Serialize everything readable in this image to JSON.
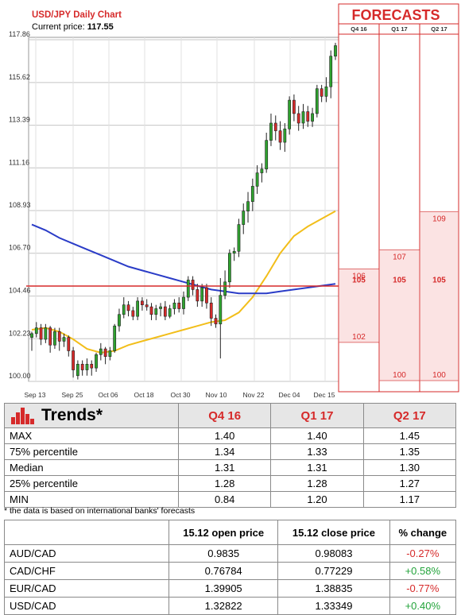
{
  "chart_data": {
    "type": "candlestick",
    "title": "USD/JPY Daily Chart",
    "current_price_label": "Current price:",
    "current_price": "117.55",
    "y_ticks": [
      117.86,
      115.62,
      113.39,
      111.16,
      108.93,
      106.7,
      104.46,
      102.23,
      100.0
    ],
    "ylim": [
      100.0,
      117.86
    ],
    "x_ticks": [
      "Sep 13",
      "Sep 25",
      "Oct 06",
      "Oct 18",
      "Oct 30",
      "Nov 10",
      "Nov 22",
      "Dec 04",
      "Dec 15"
    ],
    "candles": [
      [
        102.3,
        102.5,
        101.6,
        102.6
      ],
      [
        102.5,
        102.8,
        102.3,
        103.1
      ],
      [
        102.8,
        102.2,
        101.9,
        103.0
      ],
      [
        102.2,
        102.8,
        102.0,
        103.0
      ],
      [
        102.8,
        101.9,
        101.5,
        102.9
      ],
      [
        101.9,
        102.6,
        101.7,
        102.8
      ],
      [
        102.6,
        102.1,
        101.6,
        102.8
      ],
      [
        102.1,
        102.3,
        101.8,
        102.5
      ],
      [
        102.3,
        101.6,
        101.3,
        102.4
      ],
      [
        101.6,
        100.6,
        100.2,
        101.8
      ],
      [
        100.3,
        100.9,
        100.1,
        101.1
      ],
      [
        100.9,
        100.6,
        100.3,
        101.1
      ],
      [
        100.6,
        100.9,
        100.3,
        101.2
      ],
      [
        100.9,
        100.7,
        100.3,
        101.1
      ],
      [
        100.7,
        101.4,
        100.5,
        101.5
      ],
      [
        101.4,
        101.7,
        101.1,
        102.0
      ],
      [
        101.7,
        101.3,
        100.9,
        101.8
      ],
      [
        101.3,
        101.6,
        101.1,
        101.8
      ],
      [
        101.6,
        102.9,
        101.5,
        103.0
      ],
      [
        102.9,
        103.5,
        102.6,
        103.8
      ],
      [
        103.5,
        104.0,
        103.3,
        104.4
      ],
      [
        104.0,
        103.7,
        103.4,
        104.2
      ],
      [
        103.7,
        103.4,
        103.2,
        103.9
      ],
      [
        103.4,
        104.2,
        103.2,
        104.4
      ],
      [
        104.2,
        104.0,
        103.7,
        104.4
      ],
      [
        104.0,
        103.9,
        103.7,
        104.3
      ],
      [
        103.9,
        103.5,
        103.2,
        104.1
      ],
      [
        103.5,
        103.8,
        103.2,
        104.0
      ],
      [
        103.8,
        103.9,
        103.4,
        104.1
      ],
      [
        103.9,
        103.4,
        103.2,
        104.2
      ],
      [
        103.4,
        103.8,
        103.3,
        104.0
      ],
      [
        103.8,
        104.1,
        103.5,
        104.3
      ],
      [
        104.1,
        103.8,
        103.6,
        104.4
      ],
      [
        103.8,
        104.4,
        103.5,
        104.7
      ],
      [
        104.4,
        105.3,
        104.2,
        105.5
      ],
      [
        105.3,
        104.8,
        104.5,
        105.5
      ],
      [
        104.8,
        104.2,
        103.9,
        105.1
      ],
      [
        104.2,
        104.9,
        103.9,
        105.1
      ],
      [
        104.9,
        104.1,
        103.8,
        105.1
      ],
      [
        104.1,
        103.3,
        102.9,
        104.4
      ],
      [
        103.3,
        103.0,
        102.8,
        103.5
      ],
      [
        103.0,
        104.5,
        101.2,
        105.4
      ],
      [
        104.5,
        105.2,
        104.3,
        105.8
      ],
      [
        105.2,
        106.7,
        104.9,
        106.9
      ],
      [
        106.7,
        106.8,
        106.3,
        107.0
      ],
      [
        106.8,
        108.2,
        106.5,
        108.5
      ],
      [
        108.2,
        108.9,
        107.7,
        109.3
      ],
      [
        108.9,
        109.4,
        108.3,
        109.9
      ],
      [
        109.4,
        110.2,
        108.9,
        110.6
      ],
      [
        110.2,
        110.9,
        109.8,
        111.3
      ],
      [
        110.9,
        111.1,
        110.4,
        111.4
      ],
      [
        111.1,
        112.6,
        110.9,
        113.0
      ],
      [
        112.6,
        113.5,
        112.3,
        114.0
      ],
      [
        113.5,
        113.1,
        112.6,
        113.9
      ],
      [
        113.1,
        112.5,
        112.1,
        113.6
      ],
      [
        112.5,
        113.2,
        112.0,
        113.5
      ],
      [
        113.2,
        114.7,
        112.9,
        114.9
      ],
      [
        114.7,
        114.0,
        113.6,
        115.0
      ],
      [
        114.0,
        113.5,
        113.1,
        114.4
      ],
      [
        113.5,
        114.1,
        113.2,
        114.5
      ],
      [
        114.1,
        113.6,
        113.3,
        114.4
      ],
      [
        113.6,
        114.0,
        113.3,
        114.3
      ],
      [
        114.0,
        115.3,
        113.8,
        115.5
      ],
      [
        115.3,
        114.9,
        114.6,
        115.5
      ],
      [
        114.9,
        115.4,
        114.6,
        115.9
      ],
      [
        115.4,
        117.0,
        114.8,
        117.3
      ],
      [
        117.0,
        117.55,
        116.8,
        117.7
      ]
    ],
    "ma_short": [
      [
        0,
        102.7
      ],
      [
        3,
        102.8
      ],
      [
        6,
        102.6
      ],
      [
        9,
        102.2
      ],
      [
        12,
        101.7
      ],
      [
        15,
        101.5
      ],
      [
        18,
        101.6
      ],
      [
        21,
        101.9
      ],
      [
        24,
        102.1
      ],
      [
        27,
        102.3
      ],
      [
        30,
        102.5
      ],
      [
        33,
        102.7
      ],
      [
        36,
        102.9
      ],
      [
        39,
        103.1
      ],
      [
        42,
        103.2
      ],
      [
        45,
        103.6
      ],
      [
        48,
        104.4
      ],
      [
        51,
        105.5
      ],
      [
        54,
        106.7
      ],
      [
        57,
        107.6
      ],
      [
        60,
        108.1
      ],
      [
        63,
        108.5
      ],
      [
        66,
        108.9
      ]
    ],
    "ma_long": [
      [
        0,
        108.2
      ],
      [
        3,
        107.9
      ],
      [
        6,
        107.5
      ],
      [
        9,
        107.2
      ],
      [
        12,
        106.9
      ],
      [
        15,
        106.6
      ],
      [
        18,
        106.3
      ],
      [
        21,
        106.0
      ],
      [
        24,
        105.8
      ],
      [
        27,
        105.6
      ],
      [
        30,
        105.4
      ],
      [
        33,
        105.2
      ],
      [
        36,
        105.0
      ],
      [
        39,
        104.8
      ],
      [
        42,
        104.7
      ],
      [
        45,
        104.6
      ],
      [
        48,
        104.6
      ],
      [
        51,
        104.6
      ],
      [
        54,
        104.7
      ],
      [
        57,
        104.8
      ],
      [
        60,
        104.9
      ],
      [
        63,
        105.0
      ],
      [
        66,
        105.1
      ]
    ],
    "forecasts": {
      "title": "FORECASTS",
      "columns": [
        "Q4 16",
        "Q1 17",
        "Q2 17"
      ],
      "median_values": [
        "105",
        "105",
        "105"
      ],
      "upper_values": [
        "106",
        "107",
        "109"
      ],
      "lower_values": [
        "102",
        "100",
        "100"
      ],
      "upper_numeric": [
        106,
        107,
        109
      ],
      "lower_numeric": [
        102,
        100,
        100
      ],
      "median_numeric": 105
    }
  },
  "trends": {
    "title": "Trends*",
    "columns": [
      "Q4 16",
      "Q1 17",
      "Q2 17"
    ],
    "rows": [
      {
        "label": "MAX",
        "values": [
          "1.40",
          "1.40",
          "1.45"
        ]
      },
      {
        "label": "75% percentile",
        "values": [
          "1.34",
          "1.33",
          "1.35"
        ]
      },
      {
        "label": "Median",
        "values": [
          "1.31",
          "1.31",
          "1.30"
        ]
      },
      {
        "label": "25% percentile",
        "values": [
          "1.28",
          "1.28",
          "1.27"
        ]
      },
      {
        "label": "MIN",
        "values": [
          "0.84",
          "1.20",
          "1.17"
        ]
      }
    ],
    "note": "* the data is based on international banks' forecasts"
  },
  "fx": {
    "columns": [
      "15.12 open price",
      "15.12 close price",
      "% change"
    ],
    "rows": [
      {
        "pair": "AUD/CAD",
        "open": "0.9835",
        "close": "0.98083",
        "change": "-0.27%",
        "dir": "neg"
      },
      {
        "pair": "CAD/CHF",
        "open": "0.76784",
        "close": "0.77229",
        "change": "+0.58%",
        "dir": "pos"
      },
      {
        "pair": "EUR/CAD",
        "open": "1.39905",
        "close": "1.38835",
        "change": "-0.77%",
        "dir": "neg"
      },
      {
        "pair": "USD/CAD",
        "open": "1.32822",
        "close": "1.33349",
        "change": "+0.40%",
        "dir": "pos"
      }
    ]
  },
  "colors": {
    "accent": "#d62a2a",
    "bull": "#2fa32f",
    "bear": "#d62a2a",
    "ma_short": "#f2be1a",
    "ma_long": "#2a3cc7",
    "forecast_fill": "#fbe3e3"
  }
}
